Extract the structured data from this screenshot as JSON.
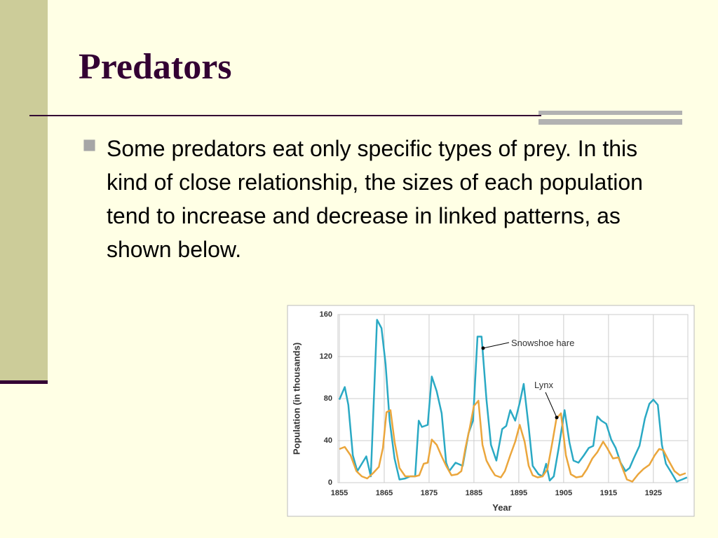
{
  "slide": {
    "title": "Predators",
    "bullet": "Some predators eat only specific types of prey. In this kind of close relationship, the sizes of each population tend to increase and decrease in linked patterns, as shown below."
  },
  "chart_data": {
    "type": "line",
    "x_label": "Year",
    "y_label": "Population (in thousands)",
    "xlim": [
      1855,
      1933
    ],
    "xticks": [
      1855,
      1865,
      1875,
      1885,
      1895,
      1905,
      1915,
      1925
    ],
    "ylim": [
      0,
      160
    ],
    "yticks": [
      0,
      40,
      80,
      120,
      160
    ],
    "grid": true,
    "series": [
      {
        "name": "Snowshoe hare",
        "color": "#2aa9c4",
        "x": [
          1855,
          1856.2,
          1857,
          1858,
          1859,
          1860,
          1861,
          1862,
          1863.4,
          1864.4,
          1865.3,
          1866.2,
          1867.3,
          1868.4,
          1869.7,
          1870.8,
          1871.9,
          1872.7,
          1873.4,
          1874.7,
          1875.6,
          1876.7,
          1877.8,
          1878.8,
          1879.5,
          1880.9,
          1882.5,
          1883.8,
          1884.8,
          1885.8,
          1886.7,
          1887.8,
          1888.8,
          1890,
          1891.3,
          1892.2,
          1893.1,
          1894.2,
          1895.2,
          1896.1,
          1897.2,
          1898.1,
          1899.4,
          1900.3,
          1901.1,
          1901.9,
          1902.8,
          1903.9,
          1905.2,
          1906.3,
          1907.2,
          1908.3,
          1909.5,
          1910.6,
          1911.6,
          1912.5,
          1913.4,
          1914.5,
          1915.6,
          1916.6,
          1917.7,
          1918.8,
          1919.7,
          1920.6,
          1921.9,
          1923.1,
          1924.1,
          1925,
          1926,
          1926.9,
          1927.8,
          1929.1,
          1930.2,
          1931.4,
          1932.5
        ],
        "values": [
          79,
          91,
          74,
          26,
          11,
          18,
          25,
          6,
          155,
          147,
          113,
          59,
          23,
          3,
          4,
          6,
          6,
          59,
          53,
          55,
          101,
          87,
          66,
          19,
          11,
          19,
          16,
          47,
          59,
          139,
          139,
          79,
          36,
          21,
          51,
          54,
          69,
          59,
          76,
          94,
          53,
          16,
          8,
          6,
          18,
          2,
          6,
          33,
          69,
          38,
          21,
          19,
          26,
          33,
          35,
          63,
          59,
          56,
          41,
          33,
          19,
          11,
          14,
          23,
          35,
          61,
          75,
          79,
          74,
          36,
          18,
          9,
          1,
          3,
          5
        ]
      },
      {
        "name": "Lynx",
        "color": "#eba63c",
        "x": [
          1855,
          1856.2,
          1857.5,
          1858.8,
          1860,
          1861.2,
          1862.5,
          1863.8,
          1864.7,
          1865.5,
          1866.4,
          1867.3,
          1868.4,
          1869.7,
          1870.8,
          1871.9,
          1872.8,
          1873.8,
          1874.7,
          1875.6,
          1876.7,
          1877.8,
          1878.8,
          1880,
          1881.3,
          1882.2,
          1883.1,
          1884.1,
          1885,
          1886,
          1886.9,
          1887.8,
          1888.8,
          1889.7,
          1891,
          1891.9,
          1893.1,
          1894.2,
          1895.2,
          1896.3,
          1897.2,
          1898.1,
          1899.2,
          1900.3,
          1901.4,
          1902.5,
          1903.4,
          1904.4,
          1905.5,
          1906.6,
          1907.8,
          1909.1,
          1910.2,
          1911.4,
          1912.5,
          1913.8,
          1914.7,
          1916,
          1917.2,
          1918.1,
          1919.1,
          1920.3,
          1921.6,
          1922.8,
          1924.1,
          1925.3,
          1926.3,
          1927.2,
          1928.4,
          1929.7,
          1930.9,
          1932.2
        ],
        "values": [
          32,
          34,
          26,
          11,
          6,
          4,
          9,
          15,
          33,
          67,
          69,
          39,
          14,
          6,
          6,
          6,
          7,
          18,
          19,
          41,
          36,
          25,
          16,
          7,
          8,
          11,
          33,
          53,
          73,
          78,
          36,
          21,
          13,
          7,
          5,
          11,
          26,
          39,
          55,
          39,
          16,
          7,
          5,
          6,
          13,
          39,
          61,
          66,
          26,
          8,
          5,
          6,
          13,
          23,
          29,
          39,
          33,
          23,
          24,
          14,
          3,
          1,
          8,
          13,
          17,
          26,
          32,
          31,
          21,
          11,
          7,
          9
        ]
      }
    ]
  }
}
